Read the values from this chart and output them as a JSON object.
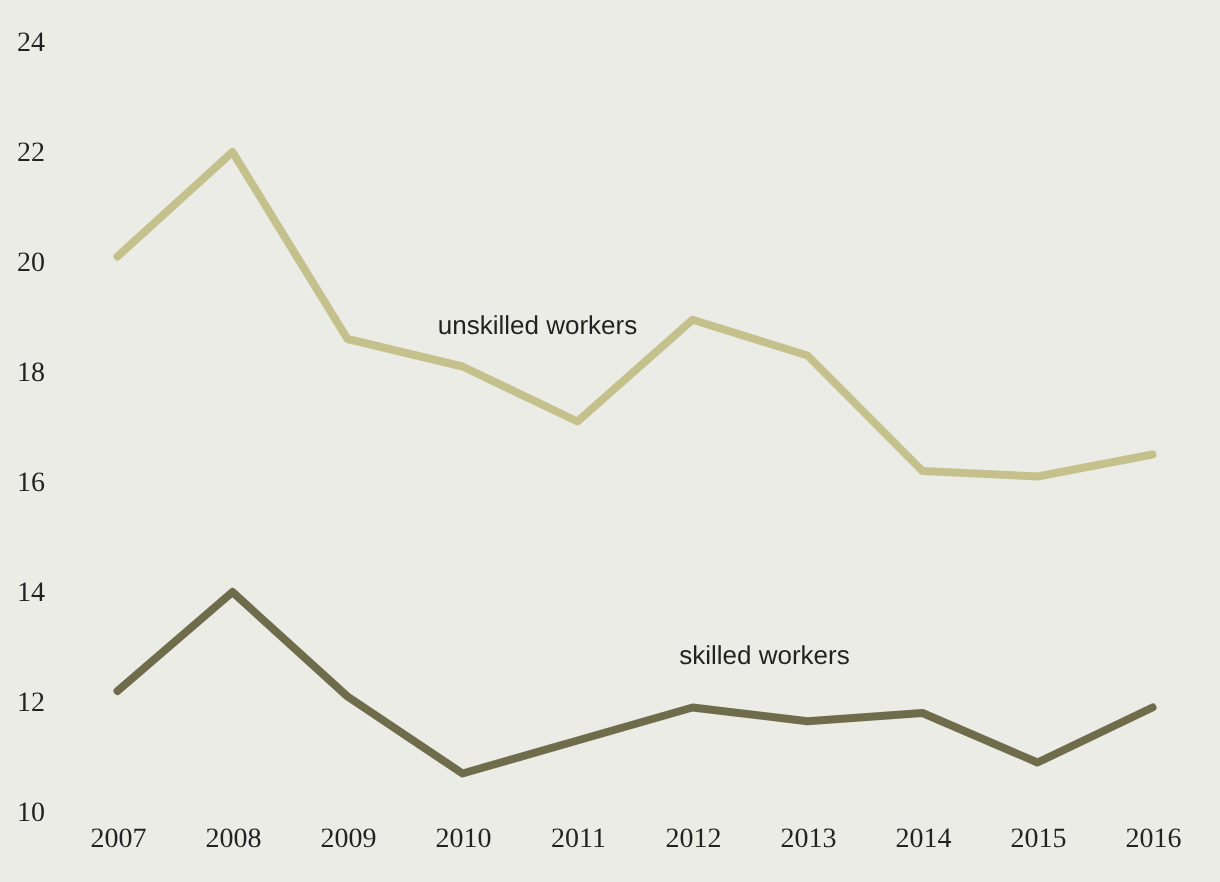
{
  "chart_data": {
    "type": "line",
    "categories": [
      "2007",
      "2008",
      "2009",
      "2010",
      "2011",
      "2012",
      "2013",
      "2014",
      "2015",
      "2016"
    ],
    "series": [
      {
        "name": "unskilled workers",
        "color": "#c5c18c",
        "values": [
          20.1,
          22.0,
          18.6,
          18.1,
          17.1,
          18.95,
          18.3,
          16.2,
          16.1,
          16.5
        ]
      },
      {
        "name": "skilled workers",
        "color": "#6f6c4b",
        "values": [
          12.2,
          14.0,
          12.1,
          10.7,
          11.3,
          11.9,
          11.65,
          11.8,
          10.9,
          11.9
        ]
      }
    ],
    "ylim": [
      10,
      24
    ],
    "yticks": [
      10,
      12,
      14,
      16,
      18,
      20,
      22,
      24
    ],
    "grid": false,
    "marker": "none",
    "line_style": "solid"
  }
}
